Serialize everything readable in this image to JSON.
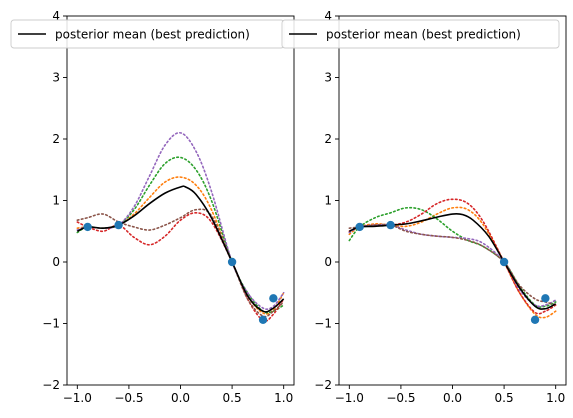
{
  "chart_data": [
    {
      "type": "line",
      "panel": "left",
      "title": "",
      "xlabel": "",
      "ylabel": "",
      "xlim": [
        -1.1,
        1.1
      ],
      "ylim": [
        -2,
        4
      ],
      "xticks": [
        -1.0,
        -0.5,
        0.0,
        0.5,
        1.0
      ],
      "xtick_labels": [
        "−1.0",
        "−0.5",
        "0.0",
        "0.5",
        "1.0"
      ],
      "yticks": [
        -2,
        -1,
        0,
        1,
        2,
        3,
        4
      ],
      "ytick_labels": [
        "−2",
        "−1",
        "0",
        "1",
        "2",
        "3",
        "4"
      ],
      "grid": false,
      "legend": {
        "placement": "top",
        "entries": [
          "posterior mean (best prediction)"
        ]
      },
      "observations": {
        "color": "#1f77b4",
        "x": [
          -0.9,
          -0.6,
          0.5,
          0.8,
          0.9
        ],
        "y": [
          0.57,
          0.6,
          0.0,
          -0.94,
          -0.59
        ]
      },
      "mean": {
        "name": "posterior mean (best prediction)",
        "color": "#000000",
        "x": [
          -1.0,
          -0.9,
          -0.75,
          -0.6,
          -0.45,
          -0.3,
          -0.15,
          0.0,
          0.05,
          0.15,
          0.3,
          0.5,
          0.65,
          0.8,
          0.9,
          1.0
        ],
        "y": [
          0.5,
          0.57,
          0.55,
          0.6,
          0.75,
          0.95,
          1.12,
          1.22,
          1.22,
          1.1,
          0.72,
          0.0,
          -0.55,
          -0.8,
          -0.75,
          -0.6
        ]
      },
      "samples": [
        {
          "color": "#ff7f0e",
          "x": [
            -1.0,
            -0.9,
            -0.75,
            -0.6,
            -0.45,
            -0.3,
            -0.15,
            0.0,
            0.15,
            0.3,
            0.5,
            0.65,
            0.8,
            0.9,
            1.0
          ],
          "y": [
            0.55,
            0.57,
            0.55,
            0.6,
            0.78,
            1.05,
            1.3,
            1.38,
            1.25,
            0.85,
            0.0,
            -0.55,
            -0.83,
            -0.78,
            -0.5
          ]
        },
        {
          "color": "#2ca02c",
          "x": [
            -1.0,
            -0.9,
            -0.75,
            -0.6,
            -0.45,
            -0.3,
            -0.15,
            0.0,
            0.15,
            0.3,
            0.5,
            0.65,
            0.8,
            0.9,
            1.0
          ],
          "y": [
            0.48,
            0.57,
            0.55,
            0.6,
            0.85,
            1.25,
            1.6,
            1.7,
            1.5,
            1.0,
            0.0,
            -0.5,
            -0.8,
            -0.8,
            -0.7
          ]
        },
        {
          "color": "#d62728",
          "x": [
            -1.0,
            -0.9,
            -0.75,
            -0.6,
            -0.45,
            -0.3,
            -0.15,
            0.0,
            0.15,
            0.3,
            0.5,
            0.65,
            0.8,
            0.9,
            1.0
          ],
          "y": [
            0.65,
            0.57,
            0.5,
            0.6,
            0.4,
            0.28,
            0.42,
            0.68,
            0.8,
            0.65,
            0.0,
            -0.6,
            -0.95,
            -0.85,
            -0.6
          ]
        },
        {
          "color": "#9467bd",
          "x": [
            -1.0,
            -0.9,
            -0.75,
            -0.6,
            -0.45,
            -0.3,
            -0.15,
            0.0,
            0.15,
            0.3,
            0.5,
            0.65,
            0.8,
            0.9,
            1.0
          ],
          "y": [
            0.52,
            0.57,
            0.55,
            0.6,
            0.9,
            1.4,
            1.9,
            2.1,
            1.8,
            1.15,
            0.0,
            -0.5,
            -0.75,
            -0.72,
            -0.5
          ]
        },
        {
          "color": "#8c564b",
          "x": [
            -1.0,
            -0.9,
            -0.75,
            -0.6,
            -0.45,
            -0.3,
            -0.15,
            0.0,
            0.15,
            0.3,
            0.5,
            0.65,
            0.8,
            0.9,
            1.0
          ],
          "y": [
            0.68,
            0.72,
            0.78,
            0.65,
            0.57,
            0.52,
            0.6,
            0.72,
            0.85,
            0.75,
            0.0,
            -0.6,
            -0.88,
            -0.8,
            -0.65
          ]
        }
      ]
    },
    {
      "type": "line",
      "panel": "right",
      "title": "",
      "xlabel": "",
      "ylabel": "",
      "xlim": [
        -1.1,
        1.1
      ],
      "ylim": [
        -2,
        4
      ],
      "xticks": [
        -1.0,
        -0.5,
        0.0,
        0.5,
        1.0
      ],
      "xtick_labels": [
        "−1.0",
        "−0.5",
        "0.0",
        "0.5",
        "1.0"
      ],
      "yticks": [
        -2,
        -1,
        0,
        1,
        2,
        3,
        4
      ],
      "ytick_labels": [
        "−2",
        "−1",
        "0",
        "1",
        "2",
        "3",
        "4"
      ],
      "grid": false,
      "legend": {
        "placement": "top",
        "entries": [
          "posterior mean (best prediction)"
        ]
      },
      "observations": {
        "color": "#1f77b4",
        "x": [
          -0.9,
          -0.6,
          0.5,
          0.8,
          0.9
        ],
        "y": [
          0.57,
          0.6,
          0.0,
          -0.94,
          -0.59
        ]
      },
      "mean": {
        "name": "posterior mean (best prediction)",
        "color": "#000000",
        "x": [
          -1.0,
          -0.9,
          -0.75,
          -0.6,
          -0.45,
          -0.3,
          -0.15,
          0.0,
          0.1,
          0.2,
          0.35,
          0.5,
          0.65,
          0.8,
          0.9,
          1.0
        ],
        "y": [
          0.5,
          0.57,
          0.58,
          0.6,
          0.62,
          0.67,
          0.73,
          0.78,
          0.77,
          0.68,
          0.42,
          0.0,
          -0.42,
          -0.72,
          -0.76,
          -0.68
        ]
      },
      "samples": [
        {
          "color": "#ff7f0e",
          "x": [
            -1.0,
            -0.9,
            -0.75,
            -0.6,
            -0.45,
            -0.3,
            -0.15,
            0.0,
            0.15,
            0.3,
            0.5,
            0.65,
            0.8,
            0.9,
            1.0
          ],
          "y": [
            0.45,
            0.57,
            0.62,
            0.6,
            0.58,
            0.65,
            0.78,
            0.88,
            0.85,
            0.6,
            0.0,
            -0.5,
            -0.85,
            -0.9,
            -0.8
          ]
        },
        {
          "color": "#2ca02c",
          "x": [
            -1.0,
            -0.9,
            -0.75,
            -0.6,
            -0.45,
            -0.3,
            -0.15,
            0.0,
            0.15,
            0.3,
            0.5,
            0.65,
            0.8,
            0.9,
            1.0
          ],
          "y": [
            0.35,
            0.57,
            0.72,
            0.8,
            0.88,
            0.85,
            0.7,
            0.5,
            0.35,
            0.25,
            0.0,
            -0.4,
            -0.7,
            -0.72,
            -0.65
          ]
        },
        {
          "color": "#d62728",
          "x": [
            -1.0,
            -0.9,
            -0.75,
            -0.6,
            -0.45,
            -0.3,
            -0.15,
            0.0,
            0.15,
            0.3,
            0.5,
            0.65,
            0.8,
            0.9,
            1.0
          ],
          "y": [
            0.5,
            0.57,
            0.6,
            0.6,
            0.65,
            0.78,
            0.95,
            1.02,
            0.95,
            0.65,
            0.0,
            -0.5,
            -0.82,
            -0.8,
            -0.7
          ]
        },
        {
          "color": "#9467bd",
          "x": [
            -1.0,
            -0.9,
            -0.75,
            -0.6,
            -0.45,
            -0.3,
            -0.15,
            0.0,
            0.15,
            0.3,
            0.5,
            0.65,
            0.8,
            0.9,
            1.0
          ],
          "y": [
            0.48,
            0.57,
            0.6,
            0.6,
            0.52,
            0.45,
            0.42,
            0.4,
            0.38,
            0.3,
            0.0,
            -0.45,
            -0.7,
            -0.7,
            -0.62
          ]
        },
        {
          "color": "#8c564b",
          "x": [
            -1.0,
            -0.9,
            -0.75,
            -0.6,
            -0.45,
            -0.3,
            -0.15,
            0.0,
            0.15,
            0.3,
            0.5,
            0.65,
            0.8,
            0.9,
            1.0
          ],
          "y": [
            0.55,
            0.57,
            0.6,
            0.6,
            0.5,
            0.45,
            0.42,
            0.4,
            0.35,
            0.25,
            0.0,
            -0.38,
            -0.6,
            -0.65,
            -0.7
          ]
        }
      ]
    }
  ]
}
